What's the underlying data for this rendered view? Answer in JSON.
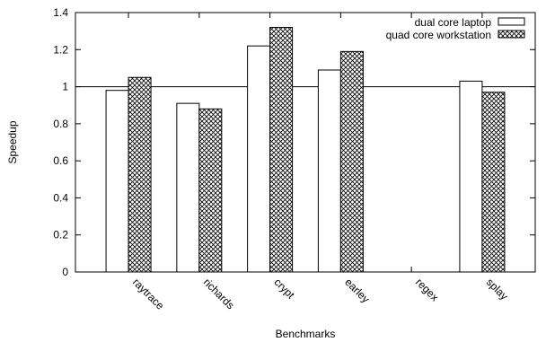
{
  "chart_data": {
    "type": "bar",
    "xlabel": "Benchmarks",
    "ylabel": "Speedup",
    "ylim": [
      0,
      1.4
    ],
    "yticks": [
      0,
      0.2,
      0.4,
      0.6,
      0.8,
      1,
      1.2,
      1.4
    ],
    "ytick_labels": [
      "0",
      "0.2",
      "0.4",
      "0.6",
      "0.8",
      "1",
      "1.2",
      "1.4"
    ],
    "reference_line": 1,
    "categories": [
      "raytrace",
      "richards",
      "crypt",
      "earley",
      "regex",
      "splay"
    ],
    "series": [
      {
        "name": "dual core laptop",
        "fill": "plain",
        "values": [
          0.98,
          0.91,
          1.22,
          1.09,
          0.0,
          1.03
        ]
      },
      {
        "name": "quad core workstation",
        "fill": "crosshatch",
        "values": [
          1.05,
          0.88,
          1.32,
          1.19,
          0.0,
          0.97
        ]
      }
    ],
    "legend_position": "top-right",
    "grid": false,
    "colors": {
      "axis": "#000000",
      "bar_fill": "#ffffff",
      "hatch": "#000000"
    }
  }
}
